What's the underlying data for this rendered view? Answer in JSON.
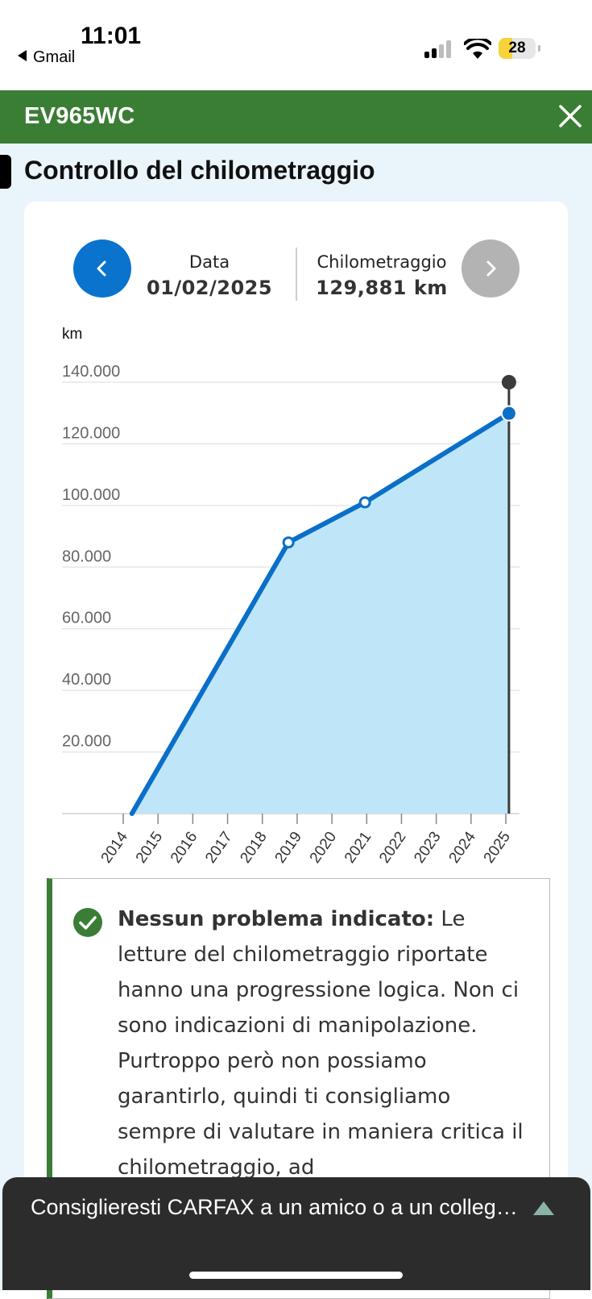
{
  "status_bar": {
    "time": "11:01",
    "back_app": "Gmail",
    "battery_level": "28",
    "icons": [
      "cellular-signal-icon",
      "wifi-icon",
      "battery-icon"
    ]
  },
  "header": {
    "plate": "EV965WC",
    "close_icon": "close-icon",
    "background_color": "#3a7d35"
  },
  "section": {
    "title": "Controllo del chilometraggio"
  },
  "reading": {
    "date_label": "Data",
    "date_value": "01/02/2025",
    "km_label": "Chilometraggio",
    "km_value": "129,881 km",
    "prev_icon": "chevron-left-icon",
    "next_icon": "chevron-right-icon",
    "accent_color": "#0a73ce"
  },
  "chart_data": {
    "type": "area",
    "ylabel": "km",
    "ylim": [
      0,
      140000
    ],
    "y_ticks": [
      20000,
      40000,
      60000,
      80000,
      100000,
      120000,
      140000
    ],
    "y_tick_labels": [
      "20.000",
      "40.000",
      "60.000",
      "80.000",
      "100.000",
      "120.000",
      "140.000"
    ],
    "categories": [
      "2014",
      "2015",
      "2016",
      "2017",
      "2018",
      "2019",
      "2020",
      "2021",
      "2022",
      "2023",
      "2024",
      "2025"
    ],
    "x_range": [
      2014,
      2025
    ],
    "series": [
      {
        "points": [
          {
            "year": 2014.25,
            "km": 0
          },
          {
            "year": 2018.75,
            "km": 88000
          },
          {
            "year": 2020.95,
            "km": 101000
          },
          {
            "year": 2025.09,
            "km": 129881
          }
        ]
      }
    ],
    "selected_year": 2025.09,
    "grid": true,
    "fill_color": "#bfe5f8",
    "line_color": "#0a6fc8"
  },
  "alert": {
    "icon": "check-circle-icon",
    "title": "Nessun problema indicato:",
    "body": "Le letture del chilometraggio riportate hanno una progressione logica. Non ci sono indicazioni di manipolazione. Purtroppo però non possiamo garantirlo, quindi ti consigliamo sempre di valutare in maniera critica il chilometraggio, ad"
  },
  "bottom_sheet": {
    "text": "Consiglieresti CARFAX a un amico o a un collega?",
    "caret_icon": "caret-up-icon"
  }
}
